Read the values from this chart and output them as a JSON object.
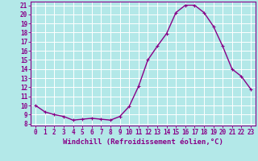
{
  "xlabel": "Windchill (Refroidissement éolien,°C)",
  "ylabel": "",
  "background_color": "#b3e8e8",
  "grid_color": "#ffffff",
  "line_color": "#880088",
  "marker_color": "#880088",
  "x": [
    0,
    1,
    2,
    3,
    4,
    5,
    6,
    7,
    8,
    9,
    10,
    11,
    12,
    13,
    14,
    15,
    16,
    17,
    18,
    19,
    20,
    21,
    22,
    23
  ],
  "y": [
    10.0,
    9.3,
    9.0,
    8.8,
    8.4,
    8.5,
    8.6,
    8.5,
    8.4,
    8.8,
    9.9,
    12.1,
    15.0,
    16.5,
    17.9,
    20.2,
    21.0,
    21.0,
    20.2,
    18.7,
    16.5,
    14.0,
    13.2,
    11.8
  ],
  "ylim": [
    7.8,
    21.4
  ],
  "xlim": [
    -0.5,
    23.5
  ],
  "yticks": [
    8,
    9,
    10,
    11,
    12,
    13,
    14,
    15,
    16,
    17,
    18,
    19,
    20,
    21
  ],
  "xticks": [
    0,
    1,
    2,
    3,
    4,
    5,
    6,
    7,
    8,
    9,
    10,
    11,
    12,
    13,
    14,
    15,
    16,
    17,
    18,
    19,
    20,
    21,
    22,
    23
  ],
  "tick_fontsize": 5.5,
  "xlabel_fontsize": 6.5,
  "marker_size": 2.5,
  "line_width": 1.0
}
